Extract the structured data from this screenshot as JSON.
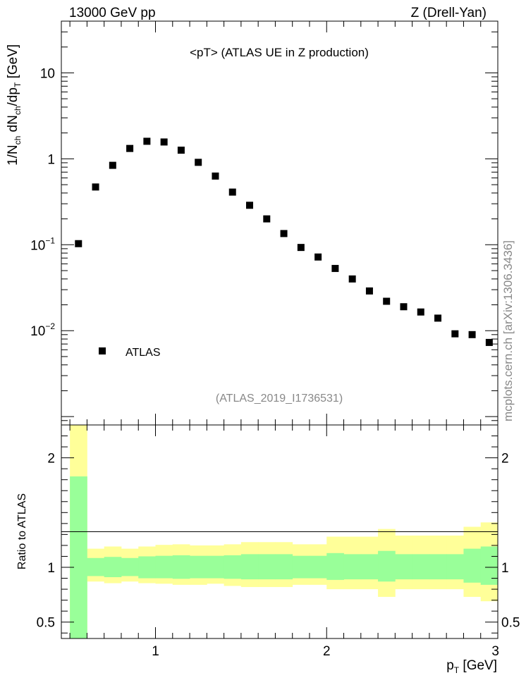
{
  "header": {
    "left": "13000 GeV pp",
    "right": "Z (Drell-Yan)"
  },
  "side_note": "mcplots.cern.ch [arXiv:1306.3436]",
  "chart_data": [
    {
      "type": "scatter",
      "title": "<pT>  (ATLAS UE in Z production)",
      "subtitle": "(ATLAS_2019_I1736531)",
      "xlabel": "p_T [GeV]",
      "ylabel": "1/N_ch dN_ch/dp_T [GeV]",
      "xlim": [
        0.45,
        3.0
      ],
      "ylim": [
        0.0008,
        40
      ],
      "yscale": "log",
      "y_ticks": [
        {
          "value": 0.01,
          "base": "10",
          "exp": "−2"
        },
        {
          "value": 0.1,
          "base": "10",
          "exp": "−1"
        },
        {
          "value": 1,
          "label": "1"
        },
        {
          "value": 10,
          "label": "10"
        }
      ],
      "legend": {
        "position": "bottom-left",
        "entries": [
          "ATLAS"
        ]
      },
      "series": [
        {
          "name": "ATLAS",
          "color": "#000000",
          "x": [
            0.55,
            0.65,
            0.75,
            0.85,
            0.95,
            1.05,
            1.15,
            1.25,
            1.35,
            1.45,
            1.55,
            1.65,
            1.75,
            1.85,
            1.95,
            2.05,
            2.15,
            2.25,
            2.35,
            2.45,
            2.55,
            2.65,
            2.75,
            2.85,
            2.95
          ],
          "y": [
            0.103,
            0.47,
            0.84,
            1.32,
            1.6,
            1.57,
            1.26,
            0.91,
            0.63,
            0.41,
            0.288,
            0.2,
            0.135,
            0.093,
            0.072,
            0.053,
            0.04,
            0.029,
            0.022,
            0.019,
            0.0165,
            0.014,
            0.0092,
            0.009,
            0.0073
          ]
        }
      ]
    },
    {
      "type": "area",
      "xlabel": "p_T [GeV]",
      "ylabel": "Ratio to ATLAS",
      "xlim": [
        0.45,
        3.0
      ],
      "ylim": [
        0.35,
        2.3
      ],
      "x_ticks": [
        1,
        2,
        3
      ],
      "y_ticks": [
        0.5,
        1,
        2
      ],
      "reference_line": 1,
      "bin_edges": [
        0.5,
        0.6,
        0.7,
        0.8,
        0.9,
        1.0,
        1.1,
        1.2,
        1.3,
        1.4,
        1.5,
        1.6,
        1.7,
        1.8,
        1.9,
        2.0,
        2.1,
        2.2,
        2.3,
        2.4,
        2.5,
        2.6,
        2.7,
        2.8,
        2.9,
        3.0
      ],
      "bands": [
        {
          "name": "total uncertainty",
          "color": "#ffff99",
          "lower": [
            0.3,
            0.87,
            0.855,
            0.87,
            0.855,
            0.85,
            0.84,
            0.84,
            0.85,
            0.83,
            0.82,
            0.82,
            0.82,
            0.84,
            0.84,
            0.8,
            0.8,
            0.8,
            0.73,
            0.8,
            0.8,
            0.8,
            0.8,
            0.73,
            0.69
          ],
          "upper": [
            2.5,
            1.17,
            1.19,
            1.17,
            1.19,
            1.205,
            1.21,
            1.2,
            1.2,
            1.21,
            1.23,
            1.23,
            1.23,
            1.21,
            1.21,
            1.28,
            1.28,
            1.28,
            1.35,
            1.29,
            1.29,
            1.29,
            1.29,
            1.37,
            1.41
          ]
        },
        {
          "name": "statistical uncertainty",
          "color": "#99ff99",
          "lower": [
            0.3,
            0.92,
            0.91,
            0.92,
            0.9,
            0.9,
            0.895,
            0.9,
            0.9,
            0.895,
            0.89,
            0.89,
            0.89,
            0.9,
            0.9,
            0.885,
            0.89,
            0.89,
            0.87,
            0.89,
            0.89,
            0.89,
            0.89,
            0.86,
            0.84
          ],
          "upper": [
            1.83,
            1.085,
            1.095,
            1.085,
            1.1,
            1.105,
            1.11,
            1.105,
            1.105,
            1.11,
            1.12,
            1.12,
            1.12,
            1.105,
            1.105,
            1.13,
            1.12,
            1.12,
            1.15,
            1.12,
            1.12,
            1.12,
            1.12,
            1.17,
            1.19
          ]
        }
      ]
    }
  ]
}
